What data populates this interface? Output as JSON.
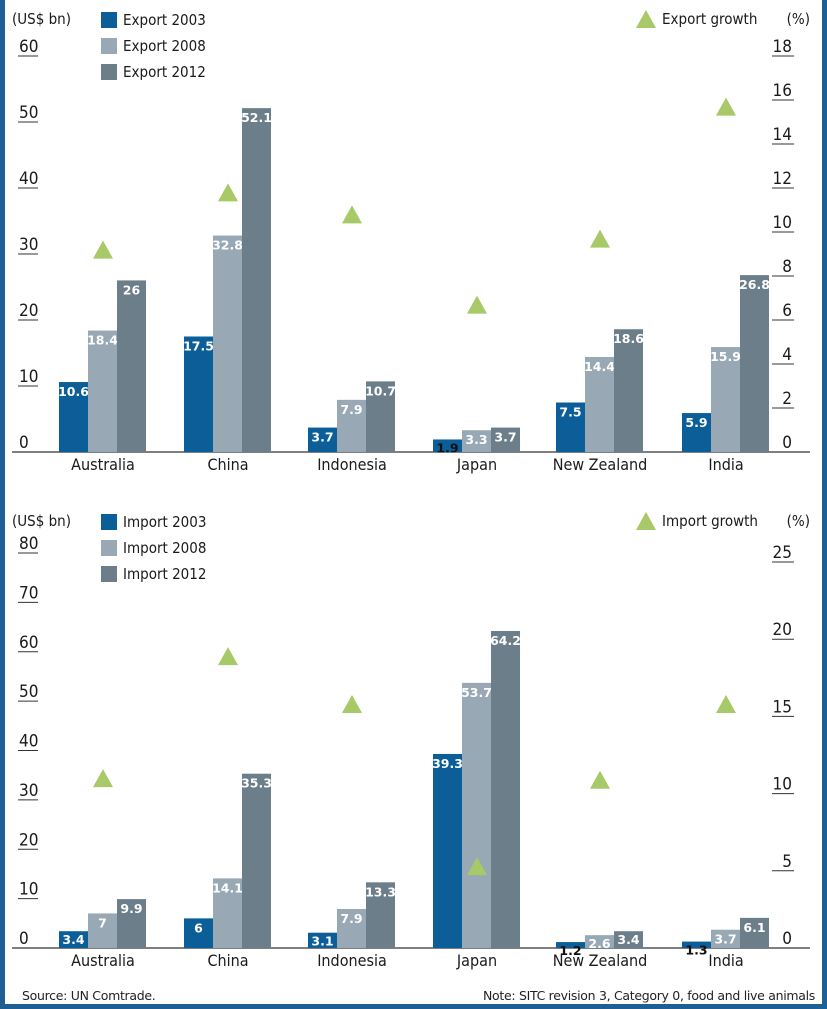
{
  "colors": {
    "y2003": "#0b5e97",
    "y2008": "#98a9b5",
    "y2012": "#6b7e8a",
    "growth": "#a8c968",
    "frame": "#1f5f94"
  },
  "footer": {
    "source": "Source: UN Comtrade.",
    "note": "Note: SITC revision 3, Category 0, food and live animals"
  },
  "chart_data": [
    {
      "type": "bar",
      "ylabel": "(US$ bn)",
      "y2label": "(%)",
      "ylim": [
        0,
        60
      ],
      "y2lim": [
        0,
        18
      ],
      "yticks": [
        0,
        10,
        20,
        30,
        40,
        50,
        60
      ],
      "y2ticks": [
        0,
        2,
        4,
        6,
        8,
        10,
        12,
        14,
        16,
        18
      ],
      "legend_position": "top-left",
      "categories": [
        "Australia",
        "China",
        "Indonesia",
        "Japan",
        "New Zealand",
        "India"
      ],
      "series": [
        {
          "name": "Export 2003",
          "values": [
            10.6,
            17.5,
            3.7,
            1.9,
            7.5,
            5.9
          ]
        },
        {
          "name": "Export 2008",
          "values": [
            18.4,
            32.8,
            7.9,
            3.3,
            14.4,
            15.9
          ]
        },
        {
          "name": "Export 2012",
          "values": [
            26,
            52.1,
            10.7,
            3.7,
            18.6,
            26.8
          ]
        }
      ],
      "growth": {
        "name": "Export growth",
        "values": [
          9.2,
          11.8,
          10.8,
          6.7,
          9.7,
          15.7
        ]
      }
    },
    {
      "type": "bar",
      "ylabel": "(US$ bn)",
      "y2label": "(%)",
      "ylim": [
        0,
        80
      ],
      "y2lim": [
        0,
        25
      ],
      "yticks": [
        0,
        10,
        20,
        30,
        40,
        50,
        60,
        70,
        80
      ],
      "y2ticks": [
        0,
        5,
        10,
        15,
        20,
        25
      ],
      "legend_position": "top-left",
      "categories": [
        "Australia",
        "China",
        "Indonesia",
        "Japan",
        "New Zealand",
        "India"
      ],
      "series": [
        {
          "name": "Import 2003",
          "values": [
            3.4,
            6,
            3.1,
            39.3,
            1.2,
            1.3
          ]
        },
        {
          "name": "Import 2008",
          "values": [
            7,
            14.1,
            7.9,
            53.7,
            2.6,
            3.7
          ]
        },
        {
          "name": "Import 2012",
          "values": [
            9.9,
            35.3,
            13.3,
            64.2,
            3.4,
            6.1
          ]
        }
      ],
      "growth": {
        "name": "Import growth",
        "values": [
          11.0,
          18.9,
          15.8,
          5.3,
          10.9,
          15.8
        ]
      }
    }
  ]
}
